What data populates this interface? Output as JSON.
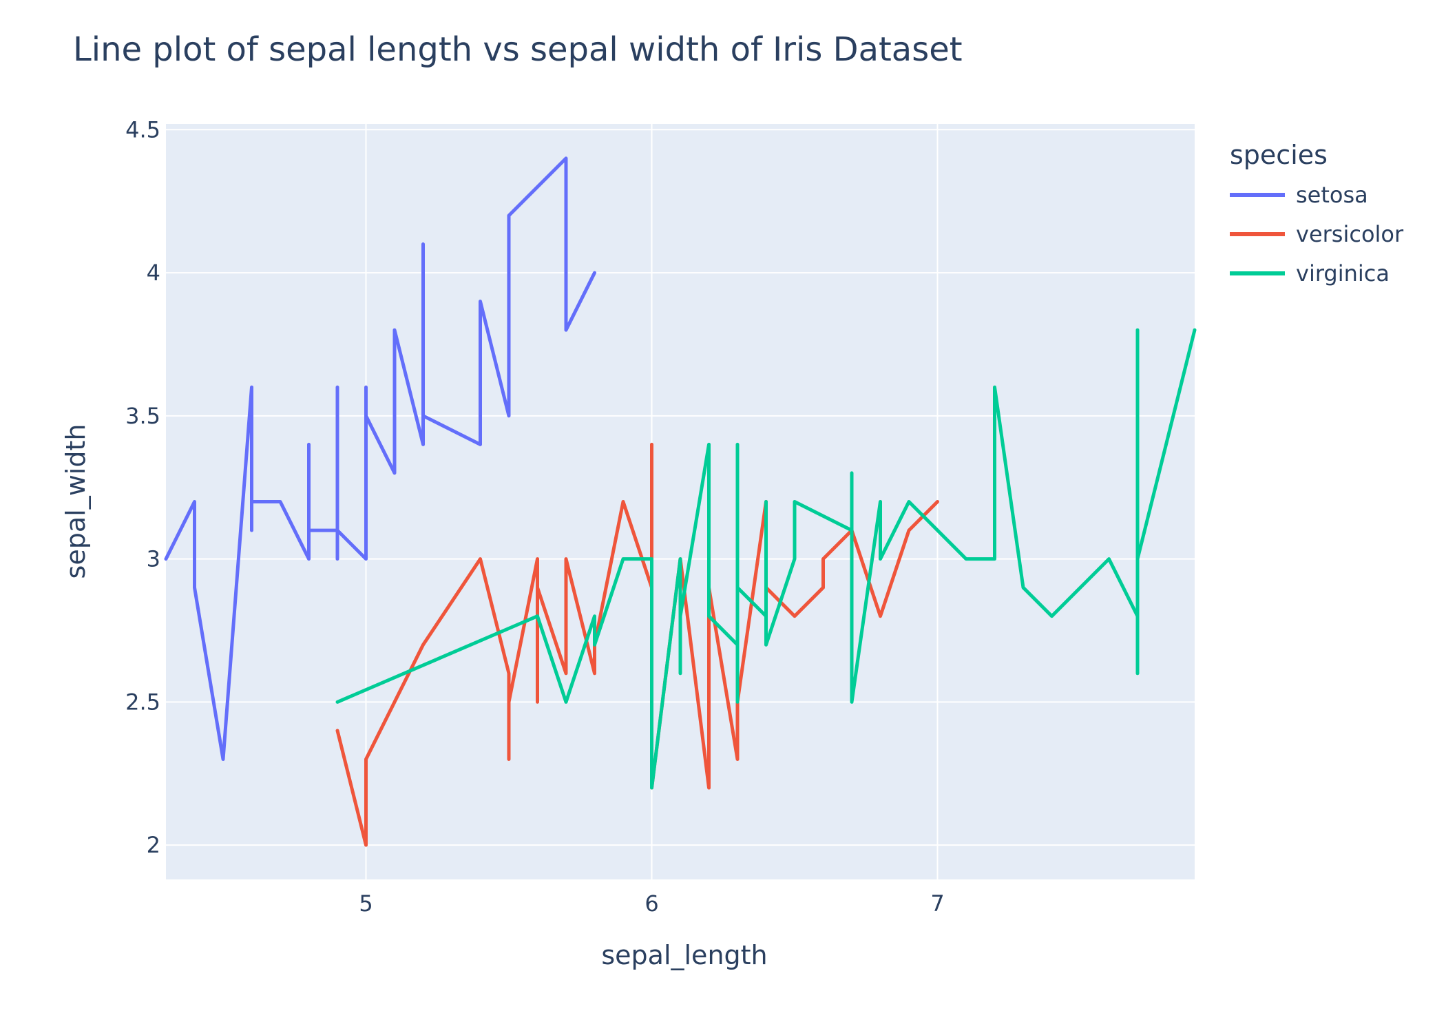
{
  "chart_data": {
    "type": "line",
    "title": "Line plot of sepal length vs sepal width of Iris Dataset",
    "xlabel": "sepal_length",
    "ylabel": "sepal_width",
    "xlim": [
      4.3,
      7.9
    ],
    "ylim": [
      1.88,
      4.52
    ],
    "xticks": [
      {
        "value": 5,
        "label": "5"
      },
      {
        "value": 6,
        "label": "6"
      },
      {
        "value": 7,
        "label": "7"
      }
    ],
    "yticks": [
      {
        "value": 2,
        "label": "2"
      },
      {
        "value": 2.5,
        "label": "2.5"
      },
      {
        "value": 3,
        "label": "3"
      },
      {
        "value": 3.5,
        "label": "3.5"
      },
      {
        "value": 4,
        "label": "4"
      },
      {
        "value": 4.5,
        "label": "4.5"
      }
    ],
    "grid": true,
    "plot_background": "#e5ecf6",
    "grid_color": "#ffffff",
    "legend": {
      "title": "species",
      "placement": "right"
    },
    "series": [
      {
        "name": "setosa",
        "color": "#636efa",
        "x": [
          4.3,
          4.4,
          4.4,
          4.4,
          4.5,
          4.6,
          4.6,
          4.6,
          4.6,
          4.7,
          4.7,
          4.8,
          4.8,
          4.8,
          4.8,
          4.9,
          4.9,
          4.9,
          4.9,
          5.0,
          5.0,
          5.0,
          5.0,
          5.0,
          5.1,
          5.1,
          5.1,
          5.2,
          5.2,
          5.2,
          5.2,
          5.4,
          5.4,
          5.4,
          5.5,
          5.5,
          5.5,
          5.7,
          5.7,
          5.7,
          5.8
        ],
        "y": [
          3.0,
          3.2,
          3.2,
          2.9,
          2.3,
          3.6,
          3.1,
          3.2,
          3.2,
          3.2,
          3.2,
          3.0,
          3.4,
          3.1,
          3.1,
          3.1,
          3.6,
          3.0,
          3.1,
          3.0,
          3.6,
          3.0,
          3.5,
          3.5,
          3.3,
          3.8,
          3.8,
          3.4,
          4.1,
          3.5,
          3.5,
          3.4,
          3.9,
          3.9,
          3.5,
          4.2,
          4.2,
          4.4,
          3.8,
          3.8,
          4.0
        ]
      },
      {
        "name": "versicolor",
        "color": "#ef553b",
        "x": [
          4.9,
          5.0,
          5.0,
          5.2,
          5.4,
          5.5,
          5.5,
          5.5,
          5.6,
          5.6,
          5.6,
          5.7,
          5.7,
          5.7,
          5.8,
          5.8,
          5.9,
          6.0,
          6.0,
          6.0,
          6.1,
          6.2,
          6.2,
          6.3,
          6.3,
          6.4,
          6.4,
          6.5,
          6.6,
          6.6,
          6.7,
          6.7,
          6.8,
          6.9,
          7.0
        ],
        "y": [
          2.4,
          2.0,
          2.3,
          2.7,
          3.0,
          2.6,
          2.3,
          2.5,
          3.0,
          2.5,
          2.9,
          2.6,
          3.0,
          3.0,
          2.6,
          2.7,
          3.2,
          2.9,
          3.4,
          2.2,
          3.0,
          2.2,
          2.9,
          2.3,
          2.5,
          3.2,
          2.9,
          2.8,
          2.9,
          3.0,
          3.1,
          3.1,
          2.8,
          3.1,
          3.2
        ]
      },
      {
        "name": "virginica",
        "color": "#00cc96",
        "x": [
          4.9,
          5.6,
          5.7,
          5.8,
          5.8,
          5.9,
          6.0,
          6.0,
          6.0,
          6.1,
          6.1,
          6.1,
          6.2,
          6.2,
          6.2,
          6.3,
          6.3,
          6.3,
          6.3,
          6.4,
          6.4,
          6.4,
          6.4,
          6.5,
          6.5,
          6.7,
          6.7,
          6.7,
          6.8,
          6.8,
          6.9,
          7.1,
          7.2,
          7.2,
          7.3,
          7.4,
          7.6,
          7.7,
          7.7,
          7.7,
          7.7,
          7.9
        ],
        "y": [
          2.5,
          2.8,
          2.5,
          2.8,
          2.7,
          3.0,
          3.0,
          3.0,
          2.2,
          3.0,
          2.6,
          2.8,
          3.4,
          3.4,
          2.8,
          2.7,
          2.5,
          3.4,
          2.9,
          2.8,
          2.8,
          3.2,
          2.7,
          3.0,
          3.2,
          3.1,
          3.3,
          2.5,
          3.2,
          3.0,
          3.2,
          3.0,
          3.0,
          3.6,
          2.9,
          2.8,
          3.0,
          2.8,
          2.6,
          3.8,
          3.0,
          3.8
        ]
      }
    ]
  }
}
